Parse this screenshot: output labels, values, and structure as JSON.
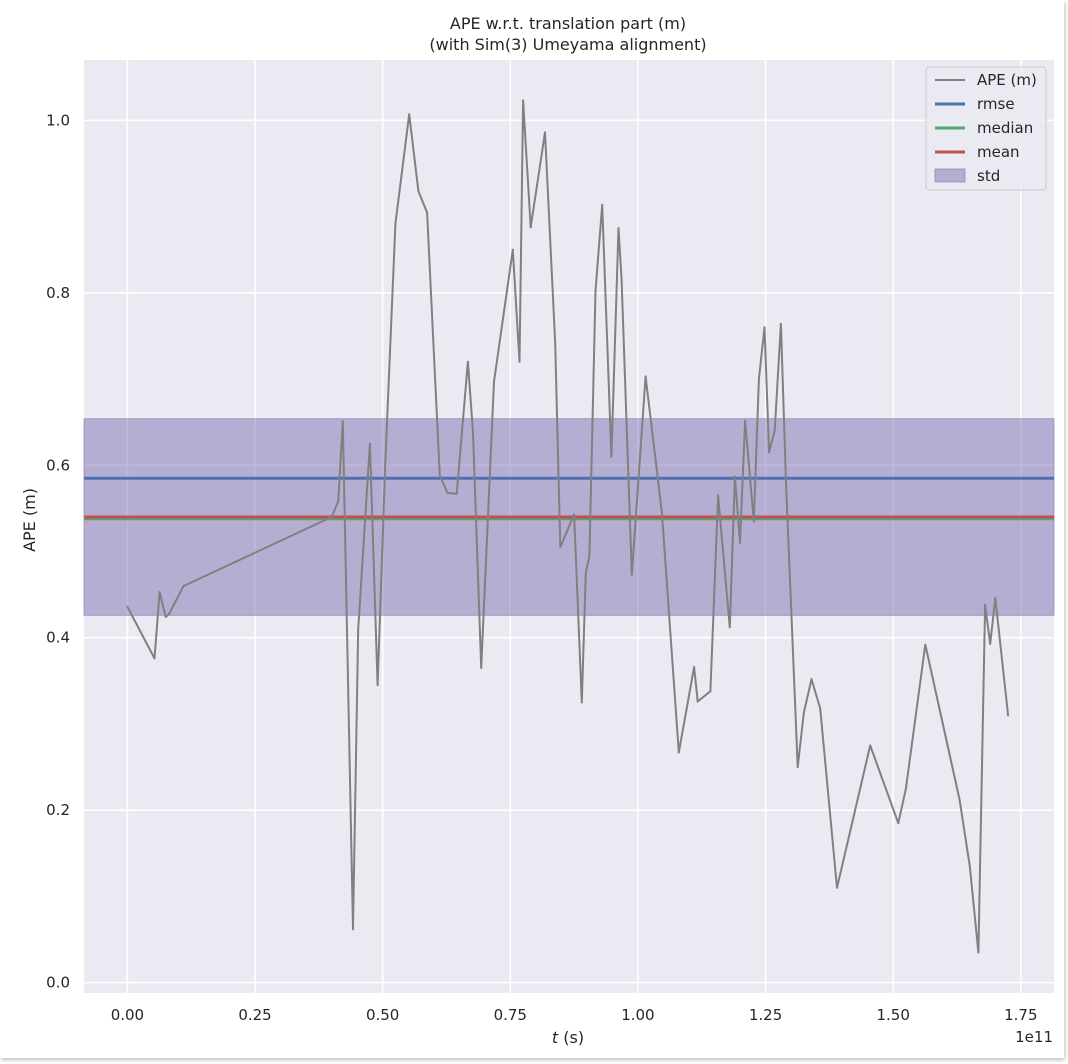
{
  "chart_data": {
    "type": "line",
    "title_line1": "APE w.r.t. translation part (m)",
    "title_line2": "(with Sim(3) Umeyama alignment)",
    "xlabel_italic": "t",
    "xlabel_rest": " (s)",
    "ylabel": "APE (m)",
    "x_offset_text": "1e11",
    "xlim": [
      -0.085,
      1.815
    ],
    "ylim": [
      -0.012,
      1.07
    ],
    "xticks": [
      0.0,
      0.25,
      0.5,
      0.75,
      1.0,
      1.25,
      1.5,
      1.75
    ],
    "xtick_labels": [
      "0.00",
      "0.25",
      "0.50",
      "0.75",
      "1.00",
      "1.25",
      "1.50",
      "1.75"
    ],
    "yticks": [
      0.0,
      0.2,
      0.4,
      0.6,
      0.8,
      1.0
    ],
    "ytick_labels": [
      "0.0",
      "0.2",
      "0.4",
      "0.6",
      "0.8",
      "1.0"
    ],
    "grid": true,
    "legend_position": "top-right",
    "colors": {
      "ape": "#808080",
      "rmse": "#4c72b0",
      "median": "#55a868",
      "mean": "#c44e52",
      "std": "#8172b2",
      "background": "#eaeaf2",
      "grid": "#ffffff"
    },
    "series": [
      {
        "name": "APE (m)",
        "x": [
          0.0,
          0.053,
          0.063,
          0.075,
          0.082,
          0.11,
          0.4,
          0.413,
          0.422,
          0.442,
          0.452,
          0.475,
          0.49,
          0.505,
          0.525,
          0.552,
          0.57,
          0.587,
          0.612,
          0.627,
          0.645,
          0.667,
          0.677,
          0.693,
          0.718,
          0.755,
          0.768,
          0.775,
          0.79,
          0.818,
          0.838,
          0.848,
          0.875,
          0.89,
          0.898,
          0.905,
          0.917,
          0.93,
          0.948,
          0.962,
          0.968,
          0.988,
          1.015,
          1.047,
          1.08,
          1.11,
          1.117,
          1.142,
          1.157,
          1.18,
          1.19,
          1.2,
          1.21,
          1.227,
          1.237,
          1.248,
          1.257,
          1.268,
          1.28,
          1.29,
          1.313,
          1.325,
          1.34,
          1.357,
          1.39,
          1.455,
          1.51,
          1.525,
          1.563,
          1.63,
          1.65,
          1.667,
          1.68,
          1.69,
          1.7,
          1.725
        ],
        "values": [
          0.436,
          0.376,
          0.453,
          0.424,
          0.428,
          0.46,
          0.54,
          0.558,
          0.651,
          0.062,
          0.41,
          0.625,
          0.345,
          0.6,
          0.88,
          1.007,
          0.918,
          0.893,
          0.588,
          0.568,
          0.567,
          0.72,
          0.638,
          0.365,
          0.697,
          0.85,
          0.72,
          1.023,
          0.876,
          0.986,
          0.742,
          0.505,
          0.543,
          0.325,
          0.475,
          0.495,
          0.802,
          0.902,
          0.61,
          0.875,
          0.815,
          0.473,
          0.703,
          0.545,
          0.267,
          0.366,
          0.326,
          0.338,
          0.565,
          0.412,
          0.587,
          0.51,
          0.652,
          0.535,
          0.7,
          0.76,
          0.615,
          0.64,
          0.764,
          0.58,
          0.25,
          0.313,
          0.352,
          0.318,
          0.11,
          0.275,
          0.185,
          0.225,
          0.392,
          0.212,
          0.135,
          0.035,
          0.438,
          0.393,
          0.446,
          0.31
        ]
      }
    ],
    "stats": {
      "rmse": 0.585,
      "median": 0.538,
      "mean": 0.54,
      "std_lower": 0.426,
      "std_upper": 0.654
    },
    "legend": [
      "APE (m)",
      "rmse",
      "median",
      "mean",
      "std"
    ]
  }
}
